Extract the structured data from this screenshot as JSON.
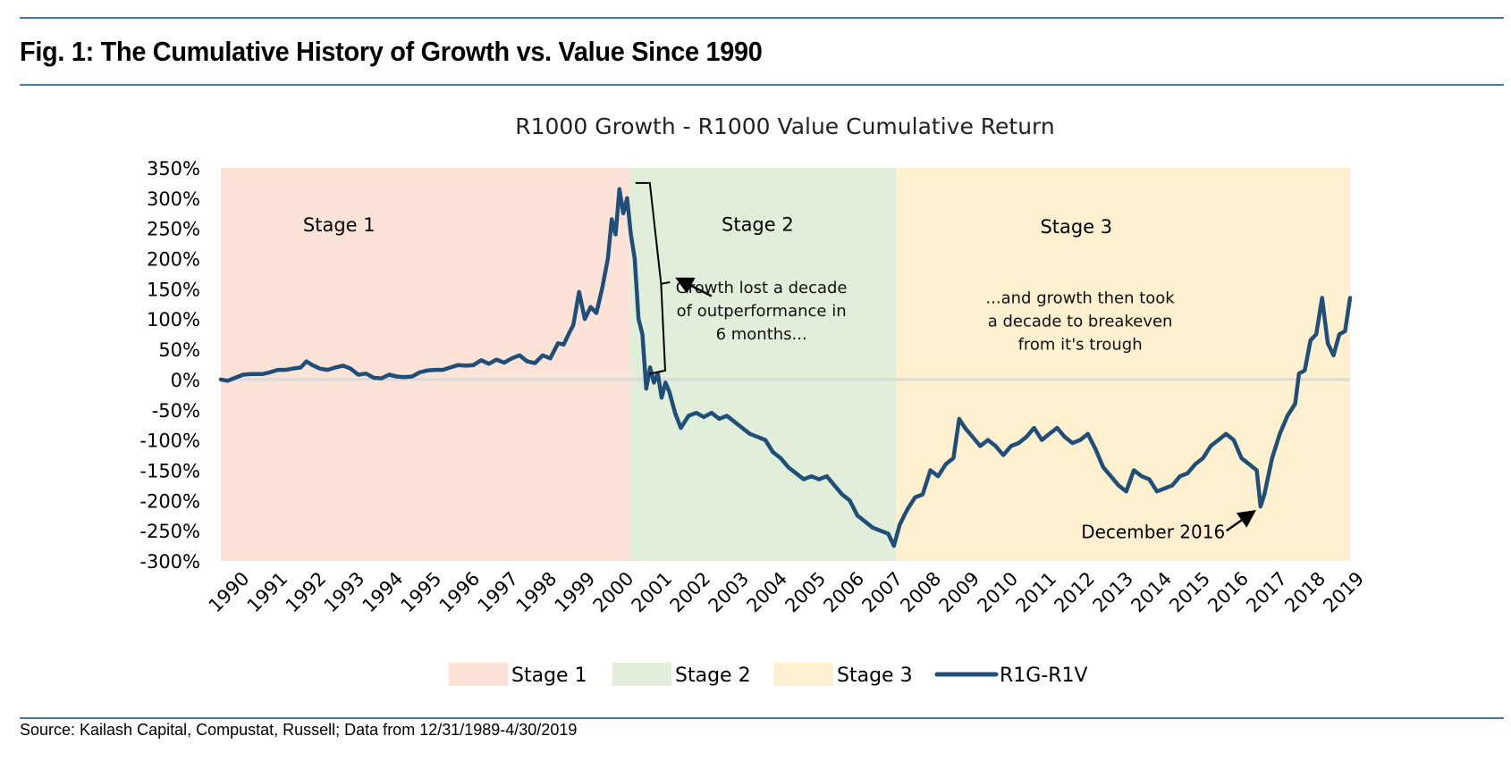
{
  "header": {
    "title": "Fig. 1: The Cumulative History of Growth vs. Value Since 1990"
  },
  "footer": {
    "source": "Source: Kailash Capital, Compustat, Russell; Data from 12/31/1989-4/30/2019"
  },
  "chart_data": {
    "type": "line",
    "title": "R1000 Growth - R1000 Value Cumulative Return",
    "xlabel": "",
    "ylabel": "",
    "xlim": [
      1989.92,
      2019.33
    ],
    "ylim": [
      -300,
      350
    ],
    "y_step": 50,
    "y_tick_labels": [
      "350%",
      "300%",
      "250%",
      "200%",
      "150%",
      "100%",
      "50%",
      "0%",
      "-50%",
      "-100%",
      "-150%",
      "-200%",
      "-250%",
      "-300%"
    ],
    "y_ticks": [
      350,
      300,
      250,
      200,
      150,
      100,
      50,
      0,
      -50,
      -100,
      -150,
      -200,
      -250,
      -300
    ],
    "x_tick_labels": [
      "1990",
      "1991",
      "1992",
      "1993",
      "1994",
      "1995",
      "1996",
      "1997",
      "1998",
      "1999",
      "2000",
      "2001",
      "2002",
      "2003",
      "2004",
      "2005",
      "2006",
      "2007",
      "2008",
      "2009",
      "2010",
      "2011",
      "2012",
      "2013",
      "2014",
      "2015",
      "2016",
      "2017",
      "2018",
      "2019"
    ],
    "grid": false,
    "zero_line": true,
    "legend_position": "bottom",
    "colors": {
      "stage1": "#fbe3d8",
      "stage2": "#e1eed9",
      "stage3": "#fff1cf",
      "line": "#1f4e79",
      "zero_line": "#d9d9d9",
      "annotation": "#000000"
    },
    "stages": [
      {
        "name": "Stage 1",
        "label": "Stage 1",
        "start": 1989.92,
        "end": 2000.58,
        "color_key": "stage1"
      },
      {
        "name": "Stage 2",
        "label": "Stage 2",
        "start": 2000.58,
        "end": 2007.5,
        "color_key": "stage2"
      },
      {
        "name": "Stage 3",
        "label": "Stage 3",
        "start": 2007.5,
        "end": 2019.33,
        "color_key": "stage3"
      }
    ],
    "legend": [
      {
        "label": "Stage 1",
        "kind": "patch",
        "color_key": "stage1"
      },
      {
        "label": "Stage 2",
        "kind": "patch",
        "color_key": "stage2"
      },
      {
        "label": "Stage 3",
        "kind": "patch",
        "color_key": "stage3"
      },
      {
        "label": "R1G-R1V",
        "kind": "line",
        "color_key": "line"
      }
    ],
    "series": [
      {
        "name": "R1G-R1V",
        "x": [
          1989.92,
          1990.1,
          1990.3,
          1990.5,
          1990.7,
          1991.0,
          1991.2,
          1991.4,
          1991.6,
          1991.8,
          1992.0,
          1992.15,
          1992.3,
          1992.5,
          1992.7,
          1992.9,
          1993.1,
          1993.3,
          1993.5,
          1993.7,
          1993.9,
          1994.1,
          1994.3,
          1994.5,
          1994.7,
          1994.9,
          1995.1,
          1995.3,
          1995.5,
          1995.7,
          1995.9,
          1996.1,
          1996.3,
          1996.5,
          1996.7,
          1996.9,
          1997.1,
          1997.3,
          1997.5,
          1997.7,
          1997.9,
          1998.1,
          1998.3,
          1998.5,
          1998.7,
          1998.85,
          1999.0,
          1999.1,
          1999.25,
          1999.4,
          1999.55,
          1999.7,
          1999.85,
          2000.0,
          2000.1,
          2000.2,
          2000.3,
          2000.4,
          2000.5,
          2000.6,
          2000.7,
          2000.8,
          2000.9,
          2001.0,
          2001.1,
          2001.2,
          2001.3,
          2001.4,
          2001.5,
          2001.6,
          2001.75,
          2001.9,
          2002.1,
          2002.3,
          2002.5,
          2002.7,
          2002.9,
          2003.1,
          2003.3,
          2003.5,
          2003.7,
          2003.9,
          2004.1,
          2004.3,
          2004.5,
          2004.7,
          2004.9,
          2005.1,
          2005.3,
          2005.5,
          2005.7,
          2005.9,
          2006.1,
          2006.3,
          2006.5,
          2006.7,
          2006.9,
          2007.1,
          2007.3,
          2007.45,
          2007.6,
          2007.8,
          2008.0,
          2008.2,
          2008.4,
          2008.6,
          2008.8,
          2009.0,
          2009.15,
          2009.3,
          2009.5,
          2009.7,
          2009.9,
          2010.1,
          2010.3,
          2010.5,
          2010.7,
          2010.9,
          2011.1,
          2011.3,
          2011.5,
          2011.7,
          2011.9,
          2012.1,
          2012.3,
          2012.5,
          2012.7,
          2012.9,
          2013.1,
          2013.3,
          2013.5,
          2013.7,
          2013.9,
          2014.1,
          2014.3,
          2014.5,
          2014.7,
          2014.9,
          2015.1,
          2015.3,
          2015.5,
          2015.7,
          2015.9,
          2016.1,
          2016.3,
          2016.5,
          2016.7,
          2016.9,
          2017.0,
          2017.1,
          2017.3,
          2017.5,
          2017.7,
          2017.9,
          2018.0,
          2018.15,
          2018.3,
          2018.45,
          2018.6,
          2018.75,
          2018.9,
          2019.05,
          2019.2,
          2019.33
        ],
        "values": [
          0,
          -2,
          3,
          8,
          9,
          9,
          12,
          16,
          16,
          18,
          20,
          30,
          24,
          18,
          16,
          20,
          23,
          18,
          8,
          10,
          3,
          2,
          8,
          5,
          4,
          5,
          12,
          15,
          16,
          16,
          20,
          24,
          23,
          24,
          32,
          26,
          33,
          28,
          35,
          40,
          30,
          27,
          40,
          35,
          60,
          58,
          78,
          90,
          145,
          100,
          120,
          110,
          150,
          200,
          265,
          240,
          315,
          275,
          300,
          240,
          200,
          100,
          75,
          -15,
          20,
          -5,
          10,
          -30,
          -5,
          -20,
          -55,
          -80,
          -60,
          -55,
          -62,
          -55,
          -65,
          -60,
          -70,
          -80,
          -90,
          -95,
          -100,
          -120,
          -130,
          -145,
          -155,
          -165,
          -160,
          -165,
          -160,
          -175,
          -190,
          -200,
          -225,
          -235,
          -245,
          -250,
          -255,
          -275,
          -240,
          -215,
          -195,
          -190,
          -150,
          -160,
          -140,
          -130,
          -65,
          -80,
          -95,
          -110,
          -100,
          -110,
          -125,
          -110,
          -105,
          -95,
          -80,
          -100,
          -90,
          -80,
          -95,
          -105,
          -100,
          -90,
          -115,
          -145,
          -160,
          -175,
          -185,
          -150,
          -160,
          -165,
          -185,
          -180,
          -175,
          -160,
          -155,
          -140,
          -130,
          -110,
          -100,
          -90,
          -100,
          -130,
          -140,
          -150,
          -210,
          -190,
          -130,
          -90,
          -60,
          -40,
          10,
          15,
          65,
          75,
          135,
          60,
          40,
          75,
          80,
          135
        ]
      }
    ],
    "annotations": [
      {
        "id": "stage1-label",
        "text": "Stage 1",
        "x": 1993.0,
        "y": 245
      },
      {
        "id": "stage2-label",
        "text": "Stage 2",
        "x": 2003.9,
        "y": 246
      },
      {
        "id": "stage3-label",
        "text": "Stage 3",
        "x": 2012.2,
        "y": 242
      },
      {
        "id": "drop-note",
        "lines": [
          "Growth lost a decade",
          "of outperformance in",
          "6 months..."
        ],
        "x": 2004.0,
        "y": 143
      },
      {
        "id": "breakeven-note",
        "lines": [
          "...and growth then took",
          "a decade to breakeven",
          "from it's trough"
        ],
        "x": 2012.3,
        "y": 126
      },
      {
        "id": "dec2016-note",
        "text": "December 2016",
        "x": 2014.2,
        "y": -262,
        "arrow_to": {
          "x": 2016.93,
          "y": -212
        }
      },
      {
        "id": "drop-bracket",
        "from": {
          "x": 2000.72,
          "y": 325
        },
        "to": {
          "x": 2001.4,
          "y": 15
        },
        "arrow_from": {
          "x": 2002.7,
          "y": 138
        }
      }
    ]
  }
}
